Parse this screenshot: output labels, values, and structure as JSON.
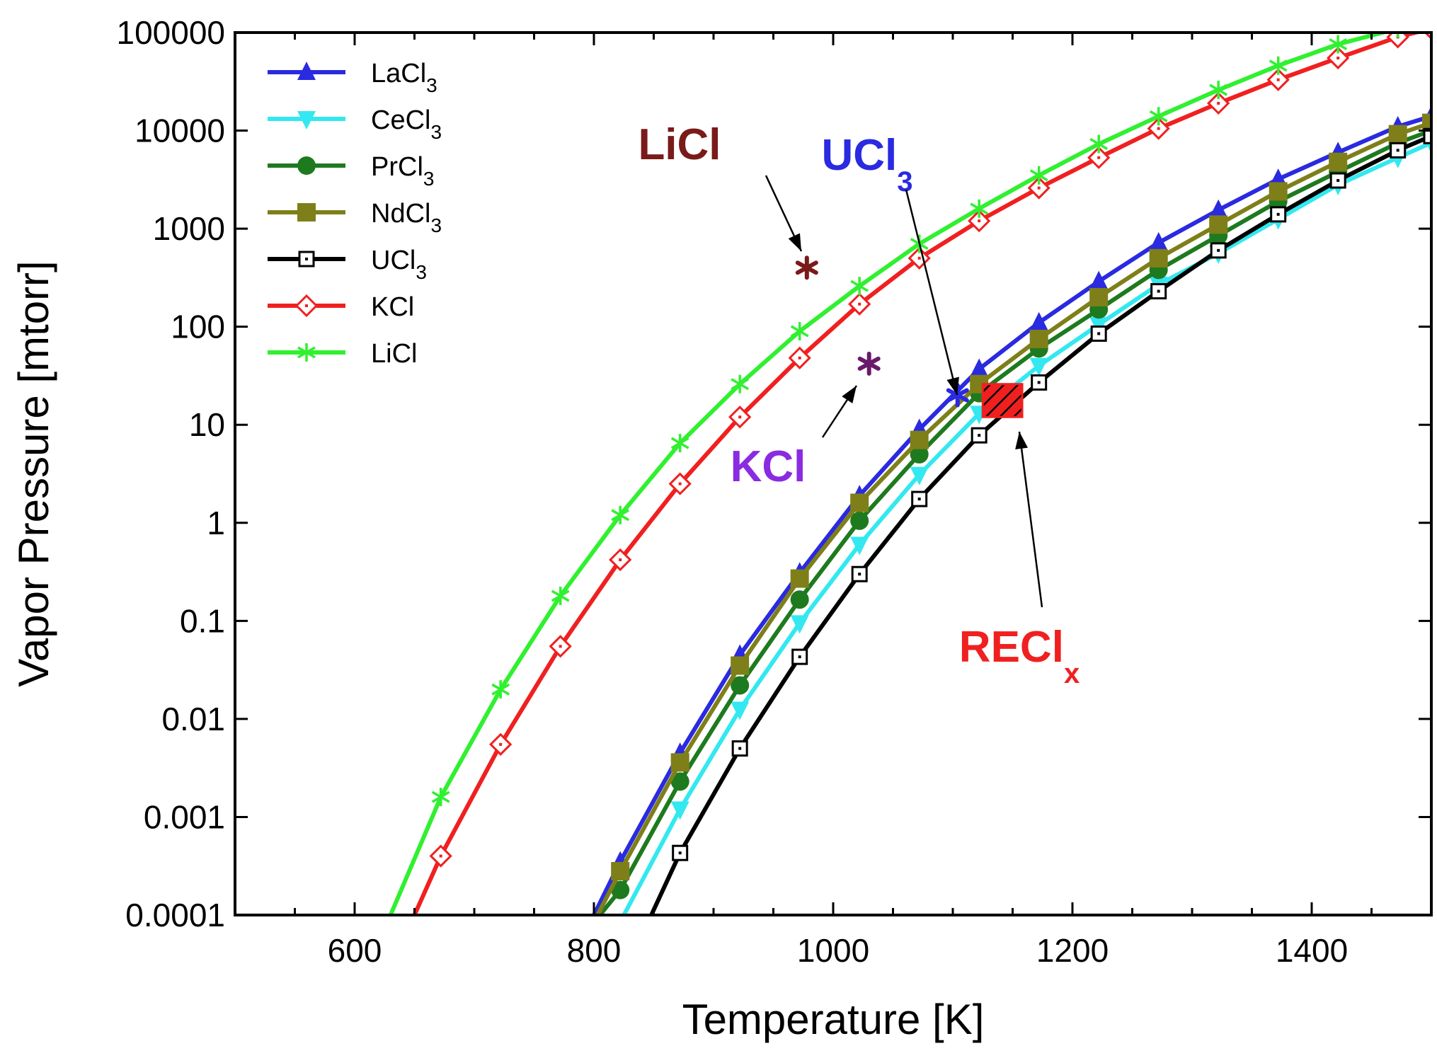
{
  "chart_data": {
    "type": "line",
    "title": "",
    "xlabel": "Temperature [K]",
    "ylabel": "Vapor Pressure [mtorr]",
    "xlim": [
      500,
      1500
    ],
    "ylim": [
      0.0001,
      100000
    ],
    "yscale": "log",
    "grid": false,
    "legend_position": "top-left",
    "x_ticks": [
      {
        "value": 600,
        "label": "600"
      },
      {
        "value": 800,
        "label": "800"
      },
      {
        "value": 1000,
        "label": "1000"
      },
      {
        "value": 1200,
        "label": "1200"
      },
      {
        "value": 1400,
        "label": "1400"
      }
    ],
    "y_ticks": [
      {
        "value": 0.0001,
        "label": "0.0001"
      },
      {
        "value": 0.001,
        "label": "0.001"
      },
      {
        "value": 0.01,
        "label": "0.01"
      },
      {
        "value": 0.1,
        "label": "0.1"
      },
      {
        "value": 1,
        "label": "1"
      },
      {
        "value": 10,
        "label": "10"
      },
      {
        "value": 100,
        "label": "100"
      },
      {
        "value": 1000,
        "label": "1000"
      },
      {
        "value": 10000,
        "label": "10000"
      },
      {
        "value": 100000,
        "label": "100000"
      }
    ],
    "series": [
      {
        "name": "LaCl",
        "sub": "3",
        "color": "#2a2ae0",
        "marker": "triangle-up",
        "filled": true,
        "x": [
          800,
          822,
          872,
          922,
          972,
          1022,
          1072,
          1122,
          1172,
          1222,
          1272,
          1322,
          1372,
          1422,
          1472,
          1500
        ],
        "y": [
          0.0001,
          0.00035,
          0.0045,
          0.045,
          0.31,
          1.9,
          9,
          37,
          110,
          290,
          720,
          1550,
          3200,
          6000,
          11000,
          14000
        ]
      },
      {
        "name": "CeCl",
        "sub": "3",
        "color": "#33e8f0",
        "marker": "triangle-down",
        "filled": true,
        "x": [
          825,
          872,
          922,
          972,
          1022,
          1072,
          1122,
          1172,
          1222,
          1272,
          1322,
          1372,
          1422,
          1472,
          1500
        ],
        "y": [
          0.0001,
          0.0012,
          0.0125,
          0.095,
          0.6,
          3.1,
          13,
          40,
          105,
          270,
          560,
          1250,
          2800,
          5300,
          7500
        ]
      },
      {
        "name": "PrCl",
        "sub": "3",
        "color": "#1e7a1e",
        "marker": "circle",
        "filled": true,
        "x": [
          805,
          822,
          872,
          922,
          972,
          1022,
          1072,
          1122,
          1172,
          1222,
          1272,
          1322,
          1372,
          1422,
          1472,
          1500
        ],
        "y": [
          0.0001,
          0.00018,
          0.0023,
          0.022,
          0.165,
          1.05,
          5,
          21,
          60,
          150,
          380,
          850,
          1900,
          3800,
          7500,
          10000
        ]
      },
      {
        "name": "NdCl",
        "sub": "3",
        "color": "#7f7f1a",
        "marker": "square",
        "filled": true,
        "x": [
          803,
          822,
          872,
          922,
          972,
          1022,
          1072,
          1122,
          1172,
          1222,
          1272,
          1322,
          1372,
          1422,
          1472,
          1500
        ],
        "y": [
          0.0001,
          0.00028,
          0.0036,
          0.035,
          0.27,
          1.6,
          7,
          26,
          75,
          200,
          500,
          1100,
          2400,
          4800,
          9200,
          12000
        ]
      },
      {
        "name": "UCl",
        "sub": "3",
        "color": "#000000",
        "marker": "square-dot",
        "filled": false,
        "x": [
          848,
          872,
          922,
          972,
          1022,
          1072,
          1122,
          1172,
          1222,
          1272,
          1322,
          1372,
          1422,
          1472,
          1500
        ],
        "y": [
          0.0001,
          0.00043,
          0.005,
          0.043,
          0.3,
          1.75,
          7.8,
          27,
          85,
          230,
          600,
          1400,
          3100,
          6300,
          8800
        ]
      },
      {
        "name": "KCl",
        "sub": "",
        "color": "#f02020",
        "marker": "diamond-dot",
        "filled": false,
        "x": [
          650,
          672,
          722,
          772,
          822,
          872,
          922,
          972,
          1022,
          1072,
          1122,
          1172,
          1222,
          1272,
          1322,
          1372,
          1422,
          1472,
          1500
        ],
        "y": [
          0.0001,
          0.0004,
          0.0055,
          0.055,
          0.42,
          2.5,
          12,
          48,
          170,
          500,
          1200,
          2600,
          5300,
          10500,
          19000,
          33000,
          55000,
          90000,
          110000
        ]
      },
      {
        "name": "LiCl",
        "sub": "",
        "color": "#30f030",
        "marker": "asterisk",
        "filled": false,
        "x": [
          630,
          672,
          722,
          772,
          822,
          872,
          922,
          972,
          1022,
          1072,
          1122,
          1172,
          1222,
          1272,
          1322,
          1372,
          1422,
          1472
        ],
        "y": [
          0.0001,
          0.0016,
          0.02,
          0.18,
          1.2,
          6.5,
          26,
          90,
          260,
          700,
          1600,
          3500,
          7300,
          14000,
          26000,
          46000,
          76000,
          110000
        ]
      }
    ],
    "single_points": [
      {
        "name": "LiCl point",
        "x": 978,
        "y": 400,
        "color": "#7a1a1a"
      },
      {
        "name": "KCl point",
        "x": 1030,
        "y": 42,
        "color": "#6a1a6a"
      },
      {
        "name": "UCl3 point",
        "x": 1104,
        "y": 20,
        "color": "#2a2ae0"
      }
    ],
    "annotations": [
      {
        "text": "LiCl",
        "sub": "",
        "color": "#7a1a1a"
      },
      {
        "text": "UCl",
        "sub": "3",
        "color": "#2a2ae0"
      },
      {
        "text": "KCl",
        "sub": "",
        "color": "#8a2be2"
      },
      {
        "text": "RECl",
        "sub": "x",
        "color": "#f02020"
      }
    ],
    "region": {
      "x_range": [
        1125,
        1158
      ],
      "y_range": [
        12,
        26
      ],
      "color": "#f02020"
    }
  }
}
